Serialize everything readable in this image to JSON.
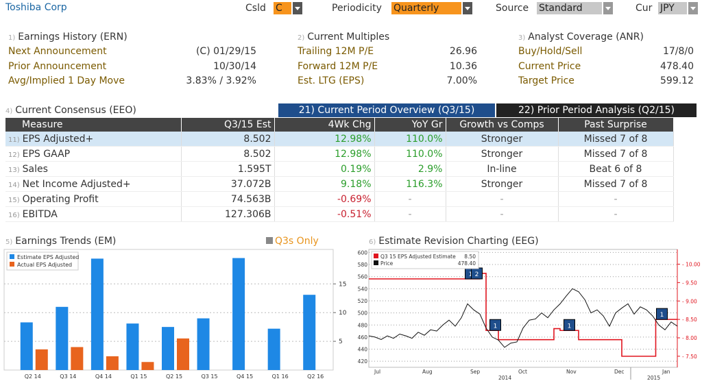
{
  "header": {
    "company": "Toshiba Corp",
    "csld_label": "Csld",
    "csld_value": "C",
    "periodicity_label": "Periodicity",
    "periodicity_value": "Quarterly",
    "source_label": "Source",
    "source_value": "Standard",
    "cur_label": "Cur",
    "cur_value": "JPY"
  },
  "earnings_history": {
    "number": "1)",
    "title": "Earnings History (ERN)",
    "rows": [
      {
        "label": "Next Announcement",
        "value": "(C)  01/29/15"
      },
      {
        "label": "Prior Announcement",
        "value": "10/30/14"
      },
      {
        "label": "Avg/Implied 1 Day Move",
        "value": "3.83% / 3.92%"
      }
    ]
  },
  "current_multiples": {
    "number": "2)",
    "title": "Current Multiples",
    "rows": [
      {
        "label": "Trailing 12M P/E",
        "value": "26.96"
      },
      {
        "label": "Forward 12M P/E",
        "value": "10.36"
      },
      {
        "label": "Est. LTG (EPS)",
        "value": "7.00%"
      }
    ]
  },
  "analyst_coverage": {
    "number": "3)",
    "title": "Analyst Coverage (ANR)",
    "rows": [
      {
        "label": "Buy/Hold/Sell",
        "value": "17/8/0"
      },
      {
        "label": "Current Price",
        "value": "478.40"
      },
      {
        "label": "Target Price",
        "value": "599.12"
      }
    ]
  },
  "consensus": {
    "number": "4)",
    "title": "Current Consensus (EEO)",
    "tab_active": "21) Current Period Overview (Q3/15)",
    "tab_inactive": "22) Prior Period Analysis (Q2/15)",
    "columns": [
      "Measure",
      "Q3/15 Est",
      "4Wk Chg",
      "YoY Gr",
      "Growth vs Comps",
      "Past Surprise"
    ],
    "rows": [
      {
        "num": "11)",
        "measure": "EPS Adjusted+",
        "est": "8.502",
        "chg": "12.98%",
        "yoy": "110.0%",
        "comps": "Stronger",
        "surprise": "Missed 7 of 8"
      },
      {
        "num": "12)",
        "measure": "EPS GAAP",
        "est": "8.502",
        "chg": "12.98%",
        "yoy": "110.0%",
        "comps": "Stronger",
        "surprise": "Missed 7 of 8"
      },
      {
        "num": "13)",
        "measure": "Sales",
        "est": "1.595T",
        "chg": "0.19%",
        "yoy": "2.9%",
        "comps": "In-line",
        "surprise": "Beat 6 of 8"
      },
      {
        "num": "14)",
        "measure": "Net Income Adjusted+",
        "est": "37.072B",
        "chg": "9.18%",
        "yoy": "116.3%",
        "comps": "Stronger",
        "surprise": "Missed 7 of 8"
      },
      {
        "num": "15)",
        "measure": "Operating Profit",
        "est": "74.563B",
        "chg": "-0.69%",
        "yoy": "-",
        "comps": "-",
        "surprise": "-"
      },
      {
        "num": "16)",
        "measure": "EBITDA",
        "est": "127.306B",
        "chg": "-0.51%",
        "yoy": "-",
        "comps": "-",
        "surprise": "-"
      }
    ]
  },
  "earnings_trends": {
    "number": "5)",
    "title": "Earnings Trends (EM)",
    "q3s_only": "Q3s Only",
    "colors": {
      "estimate": "#1e88e5",
      "actual": "#e8641e"
    },
    "chart_data": {
      "type": "bar",
      "categories": [
        "Q2 14",
        "Q3 14",
        "Q4 14",
        "Q1 15",
        "Q2 15",
        "Q3 15",
        "Q4 15",
        "Q1 16",
        "Q2 16"
      ],
      "series": [
        {
          "name": "Estimate EPS Adjusted",
          "values": [
            8.3,
            11.0,
            19.4,
            8.1,
            7.5,
            9.0,
            19.5,
            7.2,
            13.1
          ]
        },
        {
          "name": "Actual EPS Adjusted",
          "values": [
            3.6,
            4.0,
            2.4,
            1.4,
            5.5,
            null,
            null,
            null,
            null
          ]
        }
      ],
      "yticks": [
        5,
        10,
        15
      ],
      "ylim": [
        0,
        21
      ]
    }
  },
  "revision_chart": {
    "number": "6)",
    "title": "Estimate Revision Charting (EEG)",
    "legend_estimate": "Q3 15 EPS Adjusted Estimate",
    "legend_estimate_value": "8.50",
    "legend_price": "Price",
    "legend_price_value": "478.40",
    "colors": {
      "estimate": "#e0141e",
      "price": "#111111"
    },
    "chart_data": {
      "type": "line",
      "x_ticks": [
        "Jul",
        "Aug",
        "Sep",
        "Oct",
        "Nov",
        "Dec",
        "Jan"
      ],
      "year_labels": [
        "2014",
        "2015"
      ],
      "left_ticks": [
        420,
        440,
        460,
        480,
        500,
        520,
        540,
        560,
        580,
        600
      ],
      "right_ticks": [
        "7.50",
        "8.00",
        "8.50",
        "9.00",
        "9.50",
        "10.00"
      ],
      "ylim_price": [
        410,
        605
      ],
      "ylim_estimate": [
        7.2,
        10.4
      ],
      "series": [
        {
          "name": "Price",
          "x": [
            0,
            2,
            4,
            6,
            8,
            10,
            12,
            14,
            16,
            18,
            20,
            22,
            24,
            26,
            28,
            30,
            32,
            34,
            36,
            38,
            40,
            42,
            44,
            46,
            48,
            50,
            52,
            54,
            56,
            58,
            60,
            62,
            64,
            66,
            68,
            70,
            72,
            74,
            76,
            78,
            80,
            82,
            84,
            86,
            88,
            90,
            92,
            94,
            96,
            98,
            100
          ],
          "y": [
            462,
            460,
            456,
            462,
            458,
            465,
            462,
            458,
            468,
            463,
            472,
            470,
            480,
            488,
            478,
            492,
            515,
            505,
            498,
            475,
            460,
            455,
            443,
            450,
            452,
            475,
            488,
            490,
            500,
            492,
            505,
            515,
            528,
            540,
            535,
            522,
            500,
            505,
            495,
            478,
            500,
            508,
            515,
            498,
            510,
            505,
            495,
            480,
            472,
            485,
            478
          ]
        },
        {
          "name": "Q3 15 EPS Adjusted Estimate",
          "x": [
            0,
            8,
            8,
            36,
            36,
            38,
            38,
            42,
            42,
            60,
            60,
            62,
            62,
            68,
            68,
            82,
            82,
            93,
            93,
            100
          ],
          "y": [
            9.6,
            9.6,
            9.6,
            9.6,
            9.75,
            9.75,
            8.2,
            8.2,
            7.95,
            7.95,
            8.25,
            8.25,
            8.2,
            8.2,
            7.95,
            7.95,
            7.5,
            7.5,
            8.5,
            8.5
          ]
        }
      ],
      "markers": [
        {
          "x": 33,
          "label": "1"
        },
        {
          "x": 35,
          "label": "2"
        },
        {
          "x": 41,
          "label": "1"
        },
        {
          "x": 65,
          "label": "1"
        },
        {
          "x": 95,
          "label": "1"
        }
      ]
    }
  }
}
